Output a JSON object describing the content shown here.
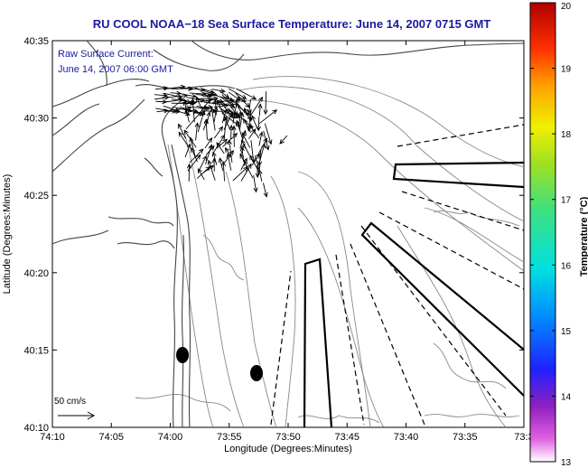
{
  "title": "RU COOL   NOAA−18  Sea Surface Temperature:  June 14, 2007 0715 GMT",
  "annotation_line1": "Raw Surface Current:",
  "annotation_line2": "June 14, 2007 06:00 GMT",
  "scale_label": "50 cm/s",
  "xlabel": "Longitude (Degrees:Minutes)",
  "ylabel": "Latitude (Degrees:Minutes)",
  "x_ticks": [
    "74:10",
    "74:05",
    "74:00",
    "73:55",
    "73:50",
    "73:45",
    "73:40",
    "73:35",
    "73:3"
  ],
  "y_ticks": [
    "40:35",
    "40:30",
    "40:25",
    "40:20",
    "40:15",
    "40:10"
  ],
  "colorbar": {
    "label": "Temperature (°C)",
    "ticks": [
      "20",
      "19",
      "18",
      "17",
      "16",
      "15",
      "14",
      "13"
    ],
    "min": 13,
    "max": 20
  },
  "colors": {
    "title": "#1a1aa0",
    "land_contour": "#555555",
    "bathymetry_contour": "#888888"
  }
}
